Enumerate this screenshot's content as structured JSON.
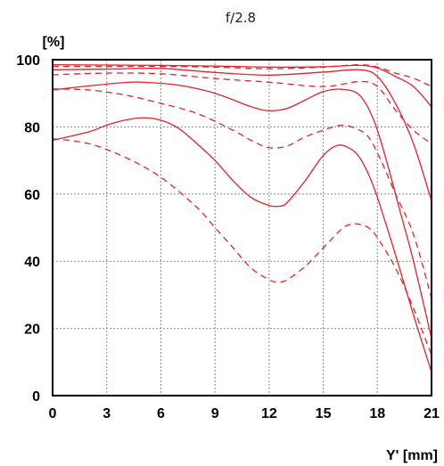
{
  "chart_data": {
    "type": "line",
    "title": "f/2.8",
    "ylabel": "[%]",
    "xlabel": "Y' [mm]",
    "xlim": [
      0,
      21
    ],
    "ylim": [
      0,
      100
    ],
    "x_ticks": [
      0,
      3,
      6,
      9,
      12,
      15,
      18,
      21
    ],
    "y_ticks": [
      0,
      20,
      40,
      60,
      80,
      100
    ],
    "grid": true,
    "line_color": "#e3222b",
    "series": [
      {
        "style": "solid",
        "x": [
          0,
          3,
          6,
          9,
          12,
          15,
          17,
          18,
          19,
          20,
          21
        ],
        "y": [
          98.5,
          98.4,
          98.3,
          98.1,
          97.8,
          97.9,
          98.3,
          97.5,
          95,
          92,
          86
        ]
      },
      {
        "style": "dashed",
        "x": [
          0,
          3,
          6,
          9,
          12,
          15,
          17,
          18,
          19,
          20,
          21
        ],
        "y": [
          98,
          98,
          98,
          97.8,
          97.3,
          97.8,
          98.5,
          97.8,
          96,
          94.5,
          92
        ]
      },
      {
        "style": "solid",
        "x": [
          0,
          3,
          6,
          9,
          12,
          15,
          17,
          18,
          19,
          20,
          21
        ],
        "y": [
          97,
          97.2,
          97.4,
          96.2,
          95.4,
          96.3,
          97,
          95,
          87,
          75,
          58
        ]
      },
      {
        "style": "dashed",
        "x": [
          0,
          3,
          6,
          9,
          12,
          15,
          17,
          18,
          19,
          20,
          21
        ],
        "y": [
          95.5,
          96,
          95.8,
          94.4,
          93.3,
          92,
          93.5,
          92,
          85,
          79,
          75
        ]
      },
      {
        "style": "solid",
        "x": [
          0,
          2,
          4,
          5,
          7,
          9,
          11,
          12,
          13,
          14,
          15,
          16,
          17,
          17.8,
          18.5,
          19.2,
          20,
          21
        ],
        "y": [
          91,
          92.2,
          93.2,
          93.3,
          92.4,
          90,
          86,
          84.8,
          85.5,
          88,
          90.5,
          91.2,
          89.5,
          82,
          70,
          56,
          40,
          17
        ]
      },
      {
        "style": "dashed",
        "x": [
          0,
          2,
          4,
          6,
          8,
          10,
          11,
          12,
          13,
          14,
          15,
          16,
          16.8,
          17.5,
          18.2,
          19,
          20,
          21
        ],
        "y": [
          91.3,
          91,
          89.5,
          87,
          84,
          79,
          76,
          73.8,
          74.3,
          77,
          79,
          80.5,
          79.5,
          77,
          70,
          60,
          48,
          29
        ]
      },
      {
        "style": "solid",
        "x": [
          0,
          2,
          3,
          4,
          5,
          6,
          7,
          8,
          9,
          10,
          11,
          12,
          12.6,
          13,
          14,
          15,
          15.8,
          16.5,
          17,
          17.5,
          18,
          19,
          20,
          21
        ],
        "y": [
          76,
          78.5,
          80.5,
          82,
          82.7,
          82,
          79.5,
          75,
          70,
          64,
          59,
          56.6,
          56.4,
          57.5,
          64,
          71.5,
          74.5,
          73.5,
          71,
          66,
          59,
          42,
          24,
          7
        ]
      },
      {
        "style": "dashed",
        "x": [
          0,
          2,
          4,
          6,
          8,
          9,
          10,
          11,
          12,
          12.5,
          13,
          14,
          15,
          16,
          16.5,
          17,
          17.5,
          18,
          19,
          20,
          21
        ],
        "y": [
          76.5,
          75,
          71,
          65,
          56,
          50,
          44,
          38,
          34.5,
          33.8,
          34.5,
          38.5,
          44,
          49.5,
          51,
          51,
          50,
          47,
          38,
          26,
          12
        ]
      }
    ]
  }
}
